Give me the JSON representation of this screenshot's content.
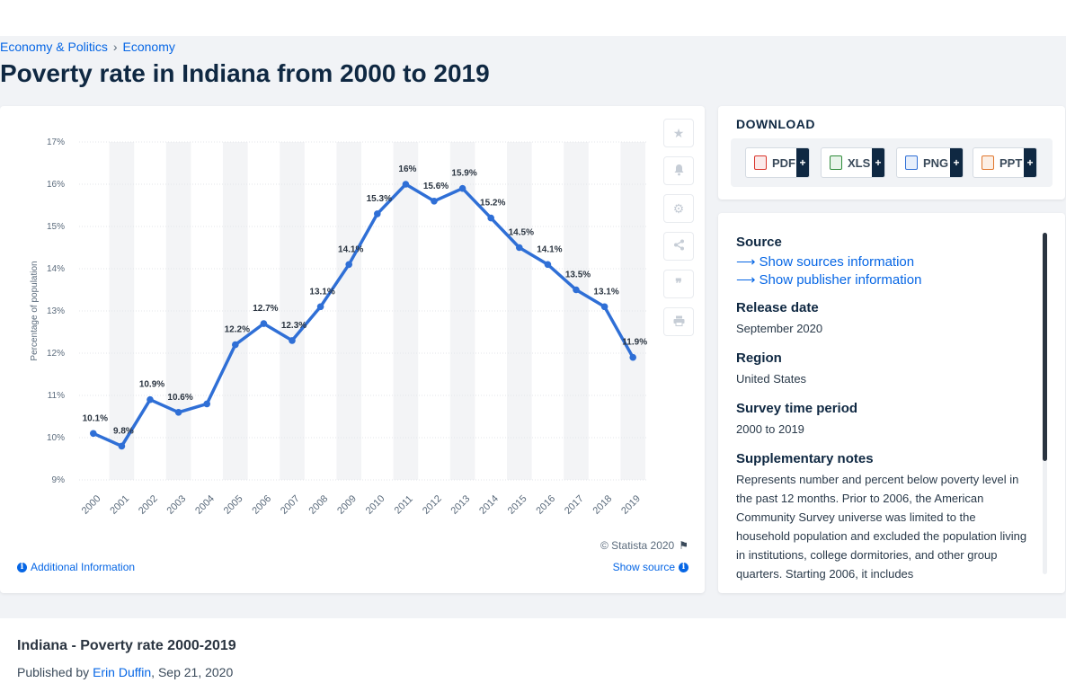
{
  "breadcrumb": {
    "items": [
      "Economy & Politics",
      "Economy"
    ],
    "separator": "›"
  },
  "page": {
    "title": "Poverty rate in Indiana from 2000 to 2019"
  },
  "chart_data": {
    "type": "line",
    "title": "",
    "xlabel": "",
    "ylabel": "Percentage of population",
    "categories": [
      "2000",
      "2001",
      "2002",
      "2003",
      "2004",
      "2005",
      "2006",
      "2007",
      "2008",
      "2009",
      "2010",
      "2011",
      "2012",
      "2013",
      "2014",
      "2015",
      "2016",
      "2017",
      "2018",
      "2019"
    ],
    "series": [
      {
        "values": [
          10.1,
          9.8,
          10.9,
          10.6,
          10.8,
          12.2,
          12.7,
          12.3,
          13.1,
          14.1,
          15.3,
          16,
          15.6,
          15.9,
          15.2,
          14.5,
          14.1,
          13.5,
          13.1,
          11.9
        ],
        "labels": [
          "10.1%",
          "9.8%",
          "10.9%",
          "10.6%",
          "",
          "12.2%",
          "12.7%",
          "12.3%",
          "13.1%",
          "14.1%",
          "15.3%",
          "16%",
          "15.6%",
          "15.9%",
          "15.2%",
          "14.5%",
          "14.1%",
          "13.5%",
          "13.1%",
          "11.9%"
        ]
      }
    ],
    "ylim": [
      9,
      17
    ],
    "yticks": [
      "9%",
      "10%",
      "11%",
      "12%",
      "13%",
      "14%",
      "15%",
      "16%",
      "17%"
    ],
    "grid": true,
    "line_color": "#2f6fd6"
  },
  "chart_footer": {
    "copyright": "© Statista 2020",
    "additional_info": "Additional Information",
    "show_source": "Show source"
  },
  "toolbar": {
    "icons": [
      "star-icon",
      "bell-icon",
      "gear-icon",
      "share-icon",
      "quote-icon",
      "print-icon"
    ]
  },
  "download": {
    "title": "DOWNLOAD",
    "buttons": [
      {
        "label": "PDF",
        "color": "#d9342b"
      },
      {
        "label": "XLS",
        "color": "#2e8b3a"
      },
      {
        "label": "PNG",
        "color": "#2f6fd6"
      },
      {
        "label": "PPT",
        "color": "#e0762c"
      }
    ],
    "plus": "+"
  },
  "meta": {
    "source_label": "Source",
    "show_sources": "Show sources information",
    "show_publisher": "Show publisher information",
    "release_label": "Release date",
    "release_value": "September 2020",
    "region_label": "Region",
    "region_value": "United States",
    "survey_label": "Survey time period",
    "survey_value": "2000 to 2019",
    "notes_label": "Supplementary notes",
    "notes_value": "Represents number and percent below poverty level in the past 12 months. Prior to 2006, the American Community Survey universe was limited to the household population and excluded the population living in institutions, college dormitories, and other group quarters. Starting 2006, it includes"
  },
  "footer": {
    "title": "Indiana - Poverty rate 2000-2019",
    "published_prefix": "Published by",
    "author": "Erin Duffin",
    "date": ", Sep 21, 2020"
  }
}
